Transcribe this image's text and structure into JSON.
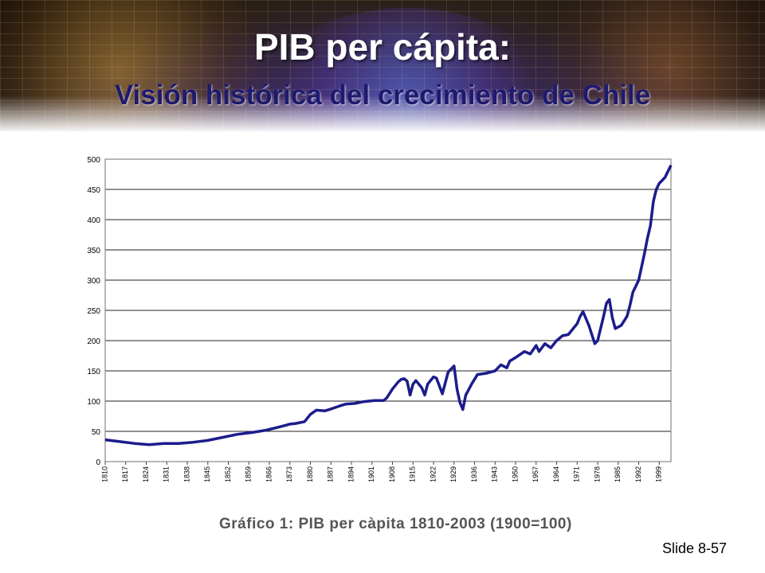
{
  "slide": {
    "title": "PIB per cápita:",
    "subtitle": "Visión histórica del crecimiento de Chile",
    "caption": "Gráfico 1: PIB per càpita 1810-2003 (1900=100)",
    "slide_number": "Slide 8-57"
  },
  "chart_data": {
    "type": "line",
    "title": "",
    "xlabel": "",
    "ylabel": "",
    "ylim": [
      0,
      500
    ],
    "yticks": [
      0,
      50,
      100,
      150,
      200,
      250,
      300,
      350,
      400,
      450,
      500
    ],
    "xticks": [
      "1810",
      "1817",
      "1824",
      "1831",
      "1838",
      "1845",
      "1852",
      "1859",
      "1866",
      "1873",
      "1880",
      "1887",
      "1894",
      "1901",
      "1908",
      "1915",
      "1922",
      "1929",
      "1936",
      "1943",
      "1950",
      "1957",
      "1964",
      "1971",
      "1978",
      "1985",
      "1992",
      "1999"
    ],
    "x_range": [
      1810,
      2003
    ],
    "grid": "horizontal",
    "line_color": "#1c1c8c",
    "series": [
      {
        "x": [
          1810,
          1815,
          1820,
          1825,
          1830,
          1835,
          1840,
          1845,
          1850,
          1855,
          1860,
          1865,
          1870,
          1873,
          1875,
          1878,
          1880,
          1882,
          1885,
          1887,
          1890,
          1892,
          1895,
          1898,
          1900,
          1902,
          1905,
          1906,
          1908,
          1910,
          1911,
          1912,
          1913,
          1914,
          1915,
          1916,
          1918,
          1919,
          1920,
          1922,
          1923,
          1925,
          1927,
          1929,
          1930,
          1931,
          1932,
          1933,
          1935,
          1937,
          1940,
          1943,
          1945,
          1947,
          1948,
          1950,
          1953,
          1955,
          1957,
          1958,
          1960,
          1962,
          1964,
          1966,
          1968,
          1971,
          1972,
          1973,
          1975,
          1977,
          1978,
          1980,
          1981,
          1982,
          1983,
          1984,
          1986,
          1988,
          1989,
          1990,
          1991,
          1992,
          1994,
          1995,
          1996,
          1997,
          1998,
          1999,
          2000,
          2001,
          2002,
          2003
        ],
        "y": [
          36,
          33,
          30,
          28,
          30,
          30,
          32,
          35,
          40,
          45,
          48,
          52,
          58,
          62,
          63,
          66,
          78,
          85,
          84,
          87,
          92,
          95,
          96,
          99,
          100,
          101,
          101,
          105,
          120,
          132,
          136,
          137,
          133,
          110,
          128,
          134,
          122,
          110,
          128,
          140,
          138,
          112,
          148,
          158,
          120,
          98,
          86,
          110,
          128,
          144,
          146,
          150,
          160,
          155,
          166,
          172,
          182,
          178,
          192,
          182,
          195,
          188,
          200,
          208,
          210,
          228,
          240,
          248,
          225,
          195,
          200,
          240,
          262,
          268,
          238,
          220,
          225,
          240,
          258,
          280,
          290,
          300,
          345,
          370,
          390,
          430,
          450,
          460,
          465,
          470,
          480,
          490
        ]
      }
    ]
  }
}
